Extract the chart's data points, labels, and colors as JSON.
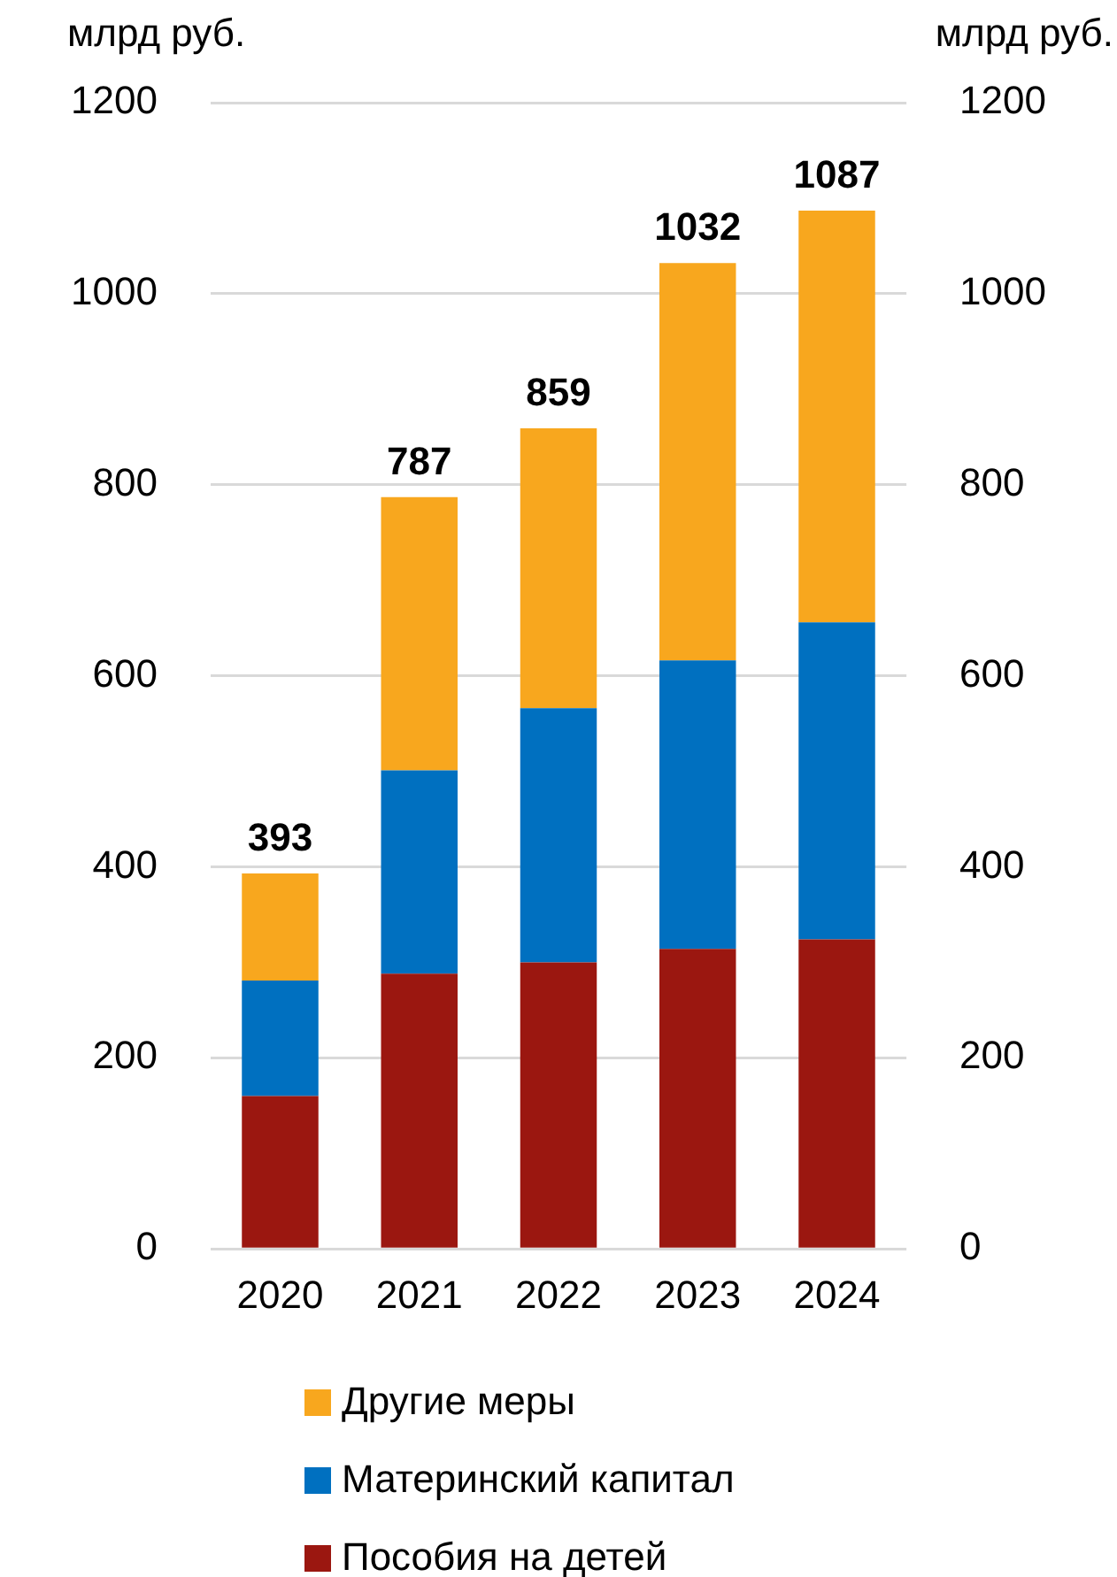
{
  "chart_data": {
    "type": "bar",
    "stacked": true,
    "ylabel": "млрд руб.",
    "y2label": "млрд руб.",
    "categories": [
      "2020",
      "2021",
      "2022",
      "2023",
      "2024"
    ],
    "series": [
      {
        "name": "Пособия на детей",
        "color": "#9b1710",
        "values": [
          160,
          288,
          300,
          314,
          324
        ]
      },
      {
        "name": "Материнский капитал",
        "color": "#0070c0",
        "values": [
          121,
          213,
          266,
          302,
          332
        ]
      },
      {
        "name": "Другие меры",
        "color": "#f8a71e",
        "values": [
          112,
          286,
          293,
          416,
          431
        ]
      }
    ],
    "totals": [
      "393",
      "787",
      "859",
      "1032",
      "1087"
    ],
    "ylim": [
      0,
      1200
    ],
    "yticks": [
      0,
      200,
      400,
      600,
      800,
      1000,
      1200
    ],
    "y2lim": [
      0,
      1200
    ],
    "y2ticks": [
      0,
      200,
      400,
      600,
      800,
      1000,
      1200
    ],
    "grid": "y",
    "legend": "bottom"
  }
}
